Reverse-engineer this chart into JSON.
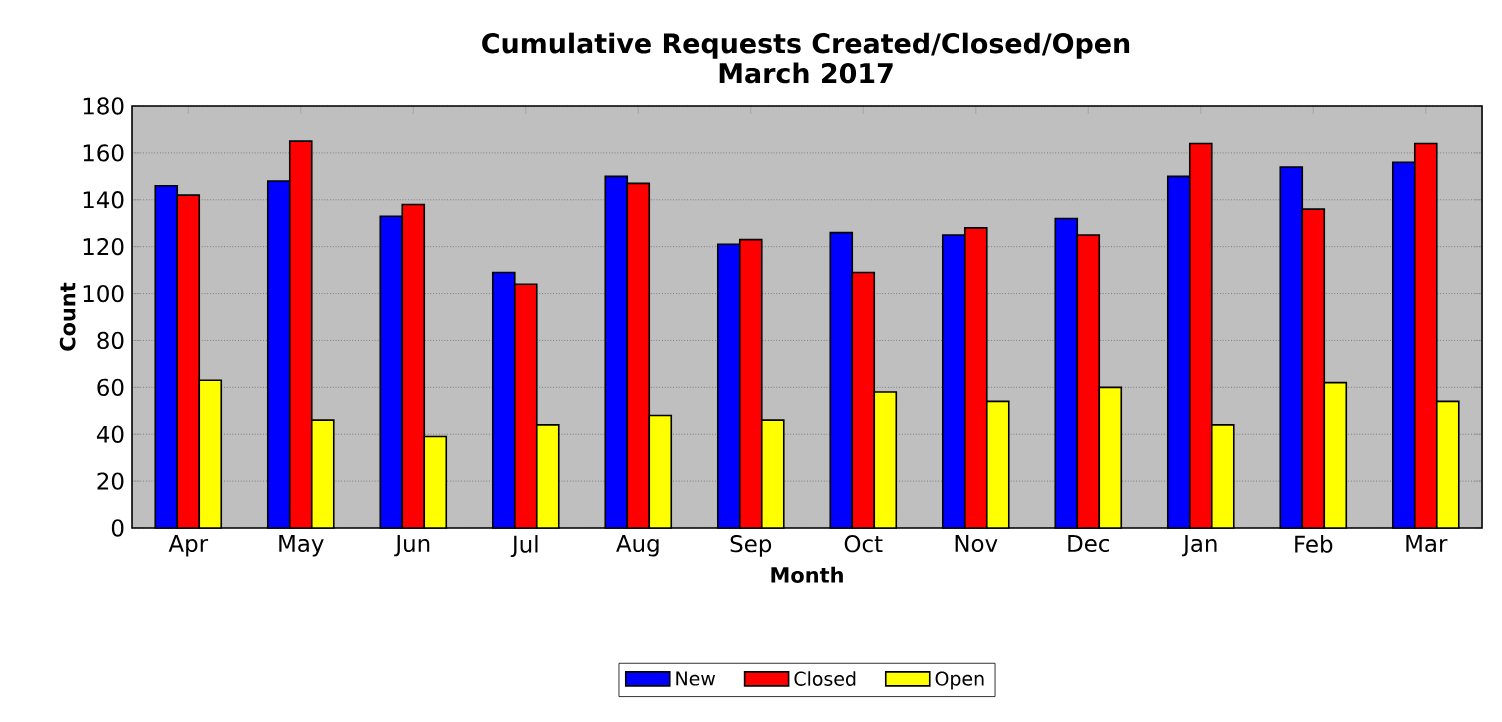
{
  "chart_data": {
    "type": "bar",
    "title": "Cumulative Requests Created/Closed/Open",
    "subtitle": "March 2017",
    "xlabel": "Month",
    "ylabel": "Count",
    "categories": [
      "Apr",
      "May",
      "Jun",
      "Jul",
      "Aug",
      "Sep",
      "Oct",
      "Nov",
      "Dec",
      "Jan",
      "Feb",
      "Mar"
    ],
    "series": [
      {
        "name": "New",
        "color": "#0000ff",
        "values": [
          146,
          148,
          133,
          109,
          150,
          121,
          126,
          125,
          132,
          150,
          154,
          156
        ]
      },
      {
        "name": "Closed",
        "color": "#ff0000",
        "values": [
          142,
          165,
          138,
          104,
          147,
          123,
          109,
          128,
          125,
          164,
          136,
          164
        ]
      },
      {
        "name": "Open",
        "color": "#ffff00",
        "values": [
          63,
          46,
          39,
          44,
          48,
          46,
          58,
          54,
          60,
          44,
          62,
          54
        ]
      }
    ],
    "ylim": [
      0,
      180
    ],
    "yticks": [
      0,
      20,
      40,
      60,
      80,
      100,
      120,
      140,
      160,
      180
    ],
    "grid": "y",
    "legend": "bottom"
  }
}
